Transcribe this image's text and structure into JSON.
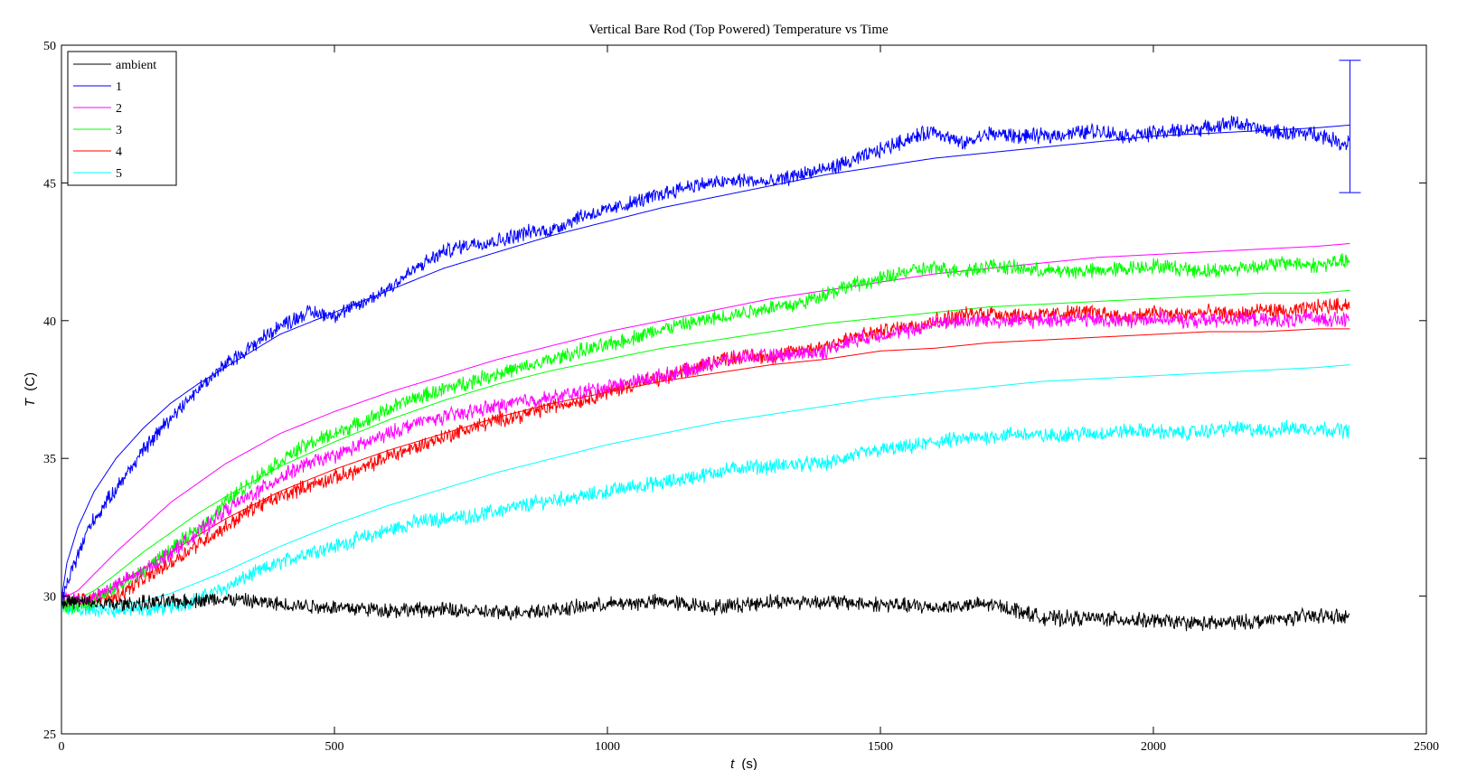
{
  "chart_data": {
    "type": "line",
    "title": "Vertical Bare Rod (Top Powered) Temperature vs Time",
    "xlabel_var": "t",
    "xlabel_unit": "(s)",
    "ylabel_var": "T",
    "ylabel_unit": "(C)",
    "xlim": [
      0,
      2500
    ],
    "ylim": [
      25,
      50
    ],
    "xticks": [
      0,
      500,
      1000,
      1500,
      2000,
      2500
    ],
    "yticks": [
      25,
      30,
      35,
      40,
      45,
      50
    ],
    "grid": false,
    "legend_position": "top-left",
    "series": [
      {
        "name": "ambient",
        "color": "#000000",
        "measured": {
          "x": [
            0,
            100,
            200,
            300,
            400,
            500,
            600,
            700,
            800,
            900,
            1000,
            1100,
            1200,
            1300,
            1400,
            1500,
            1600,
            1700,
            1750,
            1800,
            1900,
            2000,
            2100,
            2200,
            2300,
            2360
          ],
          "y": [
            29.8,
            29.7,
            29.8,
            29.9,
            29.7,
            29.6,
            29.5,
            29.5,
            29.4,
            29.5,
            29.7,
            29.8,
            29.6,
            29.8,
            29.8,
            29.7,
            29.6,
            29.7,
            29.5,
            29.2,
            29.2,
            29.1,
            29.0,
            29.1,
            29.3,
            29.2
          ]
        }
      },
      {
        "name": "1",
        "color": "#0000ff",
        "measured": {
          "x": [
            0,
            20,
            50,
            100,
            150,
            200,
            250,
            300,
            350,
            400,
            450,
            500,
            550,
            600,
            650,
            700,
            750,
            800,
            850,
            900,
            950,
            1000,
            1050,
            1100,
            1150,
            1200,
            1250,
            1300,
            1350,
            1400,
            1450,
            1500,
            1550,
            1600,
            1650,
            1700,
            1750,
            1800,
            1850,
            1900,
            1950,
            2000,
            2050,
            2100,
            2150,
            2200,
            2250,
            2300,
            2350,
            2360
          ],
          "y": [
            29.8,
            31.0,
            32.5,
            33.9,
            35.3,
            36.5,
            37.5,
            38.4,
            39.1,
            39.8,
            40.3,
            40.2,
            40.6,
            41.2,
            41.9,
            42.5,
            42.8,
            42.9,
            43.2,
            43.3,
            43.8,
            44.0,
            44.3,
            44.6,
            44.9,
            45.0,
            45.1,
            45.0,
            45.3,
            45.5,
            45.8,
            46.2,
            46.6,
            46.9,
            46.4,
            46.8,
            46.7,
            46.7,
            46.8,
            46.9,
            46.7,
            46.8,
            46.9,
            47.0,
            47.2,
            46.9,
            46.8,
            46.8,
            46.4,
            46.6
          ]
        },
        "fit": {
          "x": [
            0,
            10,
            30,
            60,
            100,
            150,
            200,
            250,
            300,
            400,
            500,
            600,
            700,
            800,
            900,
            1000,
            1100,
            1200,
            1300,
            1400,
            1500,
            1600,
            1700,
            1800,
            1900,
            2000,
            2100,
            2200,
            2300,
            2360
          ],
          "y": [
            29.9,
            31.2,
            32.5,
            33.8,
            35.0,
            36.1,
            37.0,
            37.7,
            38.3,
            39.5,
            40.3,
            41.1,
            41.9,
            42.5,
            43.1,
            43.6,
            44.1,
            44.5,
            44.9,
            45.3,
            45.6,
            45.9,
            46.1,
            46.3,
            46.5,
            46.7,
            46.8,
            46.9,
            47.0,
            47.1
          ]
        }
      },
      {
        "name": "2",
        "color": "#ff00ff",
        "measured": {
          "x": [
            0,
            50,
            100,
            150,
            200,
            250,
            300,
            350,
            400,
            450,
            500,
            550,
            600,
            650,
            700,
            750,
            800,
            850,
            900,
            950,
            1000,
            1050,
            1100,
            1150,
            1200,
            1250,
            1300,
            1350,
            1400,
            1450,
            1500,
            1550,
            1600,
            1650,
            1700,
            1750,
            1800,
            1850,
            1900,
            1950,
            2000,
            2050,
            2100,
            2150,
            2200,
            2250,
            2300,
            2360
          ],
          "y": [
            29.9,
            29.9,
            30.4,
            30.9,
            31.6,
            32.3,
            33.1,
            33.7,
            34.3,
            34.8,
            35.1,
            35.5,
            35.9,
            36.3,
            36.5,
            36.7,
            36.9,
            37.1,
            37.2,
            37.4,
            37.6,
            37.8,
            38.0,
            38.2,
            38.5,
            38.7,
            38.7,
            38.8,
            38.9,
            39.3,
            39.5,
            39.6,
            39.9,
            40.0,
            40.0,
            40.0,
            40.0,
            40.1,
            40.0,
            40.0,
            40.1,
            40.0,
            40.0,
            40.1,
            40.0,
            40.0,
            40.1,
            40.0
          ]
        },
        "fit": {
          "x": [
            0,
            30,
            60,
            100,
            150,
            200,
            250,
            300,
            400,
            500,
            600,
            700,
            800,
            900,
            1000,
            1100,
            1200,
            1300,
            1400,
            1500,
            1600,
            1700,
            1800,
            1900,
            2000,
            2100,
            2200,
            2300,
            2360
          ],
          "y": [
            29.9,
            30.2,
            30.8,
            31.6,
            32.5,
            33.4,
            34.1,
            34.8,
            35.9,
            36.7,
            37.4,
            38.0,
            38.6,
            39.1,
            39.6,
            40.0,
            40.4,
            40.8,
            41.1,
            41.4,
            41.7,
            41.9,
            42.1,
            42.3,
            42.4,
            42.5,
            42.6,
            42.7,
            42.8
          ]
        }
      },
      {
        "name": "3",
        "color": "#00ff00",
        "measured": {
          "x": [
            0,
            50,
            100,
            150,
            200,
            250,
            300,
            350,
            400,
            450,
            500,
            550,
            600,
            650,
            700,
            750,
            800,
            850,
            900,
            950,
            1000,
            1050,
            1100,
            1150,
            1200,
            1250,
            1300,
            1350,
            1400,
            1450,
            1500,
            1550,
            1600,
            1650,
            1700,
            1750,
            1800,
            1850,
            1900,
            1950,
            2000,
            2050,
            2100,
            2150,
            2200,
            2250,
            2300,
            2360
          ],
          "y": [
            29.6,
            29.7,
            30.3,
            30.9,
            31.7,
            32.4,
            33.4,
            34.2,
            34.9,
            35.5,
            35.9,
            36.3,
            36.8,
            37.2,
            37.5,
            37.8,
            38.1,
            38.3,
            38.6,
            38.9,
            39.1,
            39.4,
            39.7,
            39.9,
            40.1,
            40.3,
            40.5,
            40.6,
            41.0,
            41.3,
            41.5,
            41.8,
            41.9,
            41.8,
            42.0,
            41.9,
            41.8,
            41.8,
            41.8,
            41.9,
            42.0,
            41.9,
            41.8,
            41.9,
            42.0,
            42.1,
            42.0,
            42.2
          ]
        },
        "fit": {
          "x": [
            0,
            30,
            60,
            100,
            150,
            200,
            250,
            300,
            400,
            500,
            600,
            700,
            800,
            900,
            1000,
            1100,
            1200,
            1300,
            1400,
            1500,
            1600,
            1700,
            1800,
            1900,
            2000,
            2100,
            2200,
            2300,
            2360
          ],
          "y": [
            29.8,
            29.9,
            30.2,
            30.8,
            31.6,
            32.3,
            33.0,
            33.6,
            34.7,
            35.6,
            36.4,
            37.1,
            37.7,
            38.2,
            38.6,
            39.0,
            39.3,
            39.6,
            39.9,
            40.1,
            40.3,
            40.5,
            40.6,
            40.7,
            40.8,
            40.9,
            41.0,
            41.0,
            41.1
          ]
        }
      },
      {
        "name": "4",
        "color": "#ff0000",
        "measured": {
          "x": [
            0,
            50,
            100,
            150,
            200,
            250,
            300,
            350,
            400,
            450,
            500,
            550,
            600,
            650,
            700,
            750,
            800,
            850,
            900,
            950,
            1000,
            1050,
            1100,
            1150,
            1200,
            1250,
            1300,
            1350,
            1400,
            1450,
            1500,
            1550,
            1600,
            1650,
            1700,
            1750,
            1800,
            1850,
            1900,
            1950,
            2000,
            2050,
            2100,
            2150,
            2200,
            2250,
            2300,
            2360
          ],
          "y": [
            29.8,
            29.9,
            30.0,
            30.6,
            31.2,
            31.9,
            32.5,
            33.2,
            33.6,
            34.0,
            34.3,
            34.6,
            35.1,
            35.4,
            35.8,
            36.1,
            36.4,
            36.6,
            36.9,
            37.1,
            37.4,
            37.7,
            37.9,
            38.2,
            38.6,
            38.7,
            38.7,
            38.9,
            39.1,
            39.4,
            39.6,
            39.8,
            40.0,
            40.2,
            40.3,
            40.2,
            40.2,
            40.3,
            40.3,
            40.1,
            40.3,
            40.2,
            40.3,
            40.2,
            40.4,
            40.3,
            40.5,
            40.6
          ]
        },
        "fit": {
          "x": [
            0,
            30,
            60,
            100,
            150,
            200,
            250,
            300,
            400,
            500,
            600,
            700,
            800,
            900,
            1000,
            1100,
            1200,
            1300,
            1400,
            1500,
            1600,
            1700,
            1800,
            1900,
            2000,
            2100,
            2200,
            2300,
            2360
          ],
          "y": [
            29.8,
            29.8,
            30.0,
            30.4,
            31.0,
            31.6,
            32.2,
            32.8,
            33.8,
            34.6,
            35.3,
            35.9,
            36.5,
            37.0,
            37.4,
            37.8,
            38.1,
            38.4,
            38.6,
            38.9,
            39.0,
            39.2,
            39.3,
            39.4,
            39.5,
            39.6,
            39.6,
            39.7,
            39.7
          ]
        }
      },
      {
        "name": "5",
        "color": "#00ffff",
        "measured": {
          "x": [
            0,
            50,
            100,
            150,
            200,
            250,
            300,
            350,
            400,
            450,
            500,
            550,
            600,
            650,
            700,
            750,
            800,
            850,
            900,
            950,
            1000,
            1050,
            1100,
            1150,
            1200,
            1250,
            1300,
            1350,
            1400,
            1450,
            1500,
            1550,
            1600,
            1650,
            1700,
            1750,
            1800,
            1850,
            1900,
            1950,
            2000,
            2050,
            2100,
            2150,
            2200,
            2250,
            2300,
            2360
          ],
          "y": [
            29.5,
            29.5,
            29.5,
            29.5,
            29.6,
            29.9,
            30.3,
            30.8,
            31.2,
            31.6,
            31.8,
            32.1,
            32.4,
            32.7,
            32.8,
            32.9,
            33.1,
            33.3,
            33.5,
            33.6,
            33.8,
            34.0,
            34.1,
            34.3,
            34.5,
            34.7,
            34.7,
            34.8,
            34.8,
            35.1,
            35.3,
            35.4,
            35.6,
            35.7,
            35.8,
            35.9,
            35.8,
            35.9,
            35.9,
            36.0,
            36.0,
            35.9,
            36.0,
            36.1,
            36.0,
            36.1,
            36.1,
            36.0
          ]
        },
        "fit": {
          "x": [
            0,
            30,
            60,
            100,
            150,
            200,
            250,
            300,
            400,
            500,
            600,
            700,
            800,
            900,
            1000,
            1100,
            1200,
            1300,
            1400,
            1500,
            1600,
            1700,
            1800,
            1900,
            2000,
            2100,
            2200,
            2300,
            2360
          ],
          "y": [
            29.6,
            29.6,
            29.6,
            29.7,
            29.8,
            30.1,
            30.5,
            30.9,
            31.8,
            32.6,
            33.3,
            33.9,
            34.5,
            35.0,
            35.5,
            35.9,
            36.3,
            36.6,
            36.9,
            37.2,
            37.4,
            37.6,
            37.8,
            37.9,
            38.0,
            38.1,
            38.2,
            38.3,
            38.4
          ]
        }
      }
    ],
    "error_bar": {
      "x": 2360,
      "y": 47.05,
      "low": 44.65,
      "high": 49.45
    }
  }
}
